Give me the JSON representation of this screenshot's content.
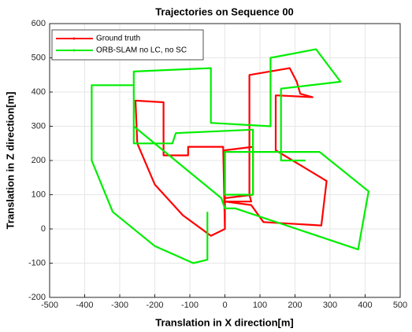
{
  "chart_data": {
    "type": "line",
    "title": "Trajectories on Sequence 00",
    "xlabel": "Translation in X direction[m]",
    "ylabel": "Translation in Z direction[m]",
    "xlim": [
      -500,
      500
    ],
    "ylim": [
      -200,
      600
    ],
    "xticks": [
      -500,
      -400,
      -300,
      -200,
      -100,
      0,
      100,
      200,
      300,
      400,
      500
    ],
    "yticks": [
      -200,
      -100,
      0,
      100,
      200,
      300,
      400,
      500,
      600
    ],
    "grid": true,
    "legend": "upper left",
    "series": [
      {
        "name": "Ground truth",
        "color": "#ff0000",
        "x": [
          0,
          -5,
          -105,
          -105,
          -175,
          -175,
          -255,
          -250,
          -200,
          -120,
          -40,
          -10,
          0,
          0,
          80,
          80,
          0,
          0,
          75,
          70,
          70,
          185,
          205,
          215,
          250,
          150,
          145,
          145,
          290,
          275,
          110,
          75,
          0
        ],
        "values": [
          0,
          240,
          240,
          215,
          215,
          370,
          375,
          250,
          130,
          40,
          -20,
          -5,
          0,
          230,
          240,
          100,
          90,
          80,
          80,
          100,
          450,
          470,
          430,
          395,
          385,
          390,
          390,
          230,
          140,
          10,
          20,
          70,
          80
        ]
      },
      {
        "name": "ORB-SLAM no LC, no SC",
        "color": "#00ee00",
        "x": [
          -50,
          -50,
          -90,
          -200,
          -320,
          -380,
          -380,
          -260,
          -260,
          -150,
          -140,
          80,
          80,
          0,
          0,
          270,
          410,
          380,
          30,
          0,
          -10,
          -260,
          -260,
          -40,
          -40,
          130,
          130,
          260,
          330,
          160,
          160,
          230
        ],
        "values": [
          50,
          -90,
          -100,
          -50,
          50,
          200,
          420,
          420,
          250,
          250,
          280,
          290,
          100,
          100,
          225,
          225,
          110,
          -60,
          60,
          60,
          90,
          300,
          460,
          470,
          310,
          300,
          500,
          525,
          430,
          410,
          200,
          200
        ]
      }
    ]
  }
}
